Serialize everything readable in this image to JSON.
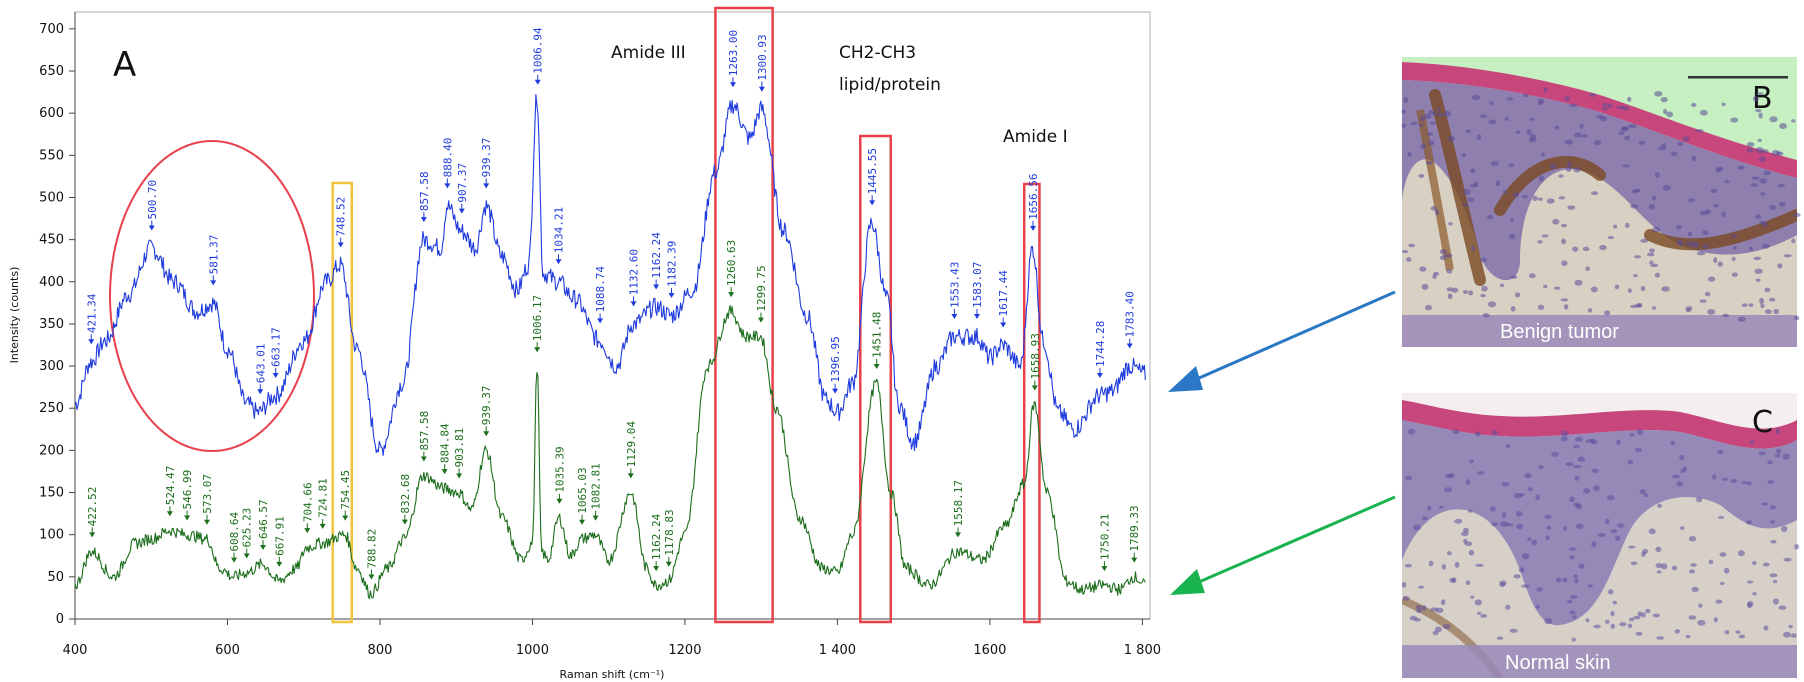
{
  "chart_data": {
    "type": "line",
    "panel_labels": [
      "A",
      "B",
      "C"
    ],
    "xlabel": "Raman shift (cm⁻¹)",
    "ylabel": "Intensity (counts)",
    "xlim": [
      400,
      1810
    ],
    "ylim": [
      0,
      720
    ],
    "xticks": [
      400,
      600,
      800,
      1000,
      1200,
      1400,
      1600,
      1800
    ],
    "xtick_labels": [
      "400",
      "600",
      "800",
      "1000",
      "1200",
      "1 400",
      "1600",
      "1 800"
    ],
    "yticks": [
      0,
      50,
      100,
      150,
      200,
      250,
      300,
      350,
      400,
      450,
      500,
      550,
      600,
      650,
      700
    ],
    "colors": {
      "benign": "#1f3bdd",
      "normal": "#1c6e1c",
      "box_red": "#e8414a",
      "box_yellow": "#f2c33d",
      "circle": "#e8414a",
      "arrow_blue": "#2a78c5",
      "arrow_green": "#19b34f"
    },
    "series": [
      {
        "key": "benign",
        "anchors": [
          [
            400,
            255
          ],
          [
            421,
            305
          ],
          [
            440,
            330
          ],
          [
            470,
            385
          ],
          [
            500,
            440
          ],
          [
            530,
            400
          ],
          [
            560,
            365
          ],
          [
            581,
            375
          ],
          [
            600,
            320
          ],
          [
            625,
            255
          ],
          [
            640,
            245
          ],
          [
            663,
            265
          ],
          [
            700,
            330
          ],
          [
            730,
            400
          ],
          [
            748,
            420
          ],
          [
            770,
            320
          ],
          [
            800,
            200
          ],
          [
            830,
            280
          ],
          [
            857,
            450
          ],
          [
            880,
            440
          ],
          [
            888,
            490
          ],
          [
            907,
            460
          ],
          [
            925,
            440
          ],
          [
            939,
            490
          ],
          [
            960,
            430
          ],
          [
            980,
            390
          ],
          [
            995,
            420
          ],
          [
            1006,
            620
          ],
          [
            1014,
            410
          ],
          [
            1034,
            400
          ],
          [
            1055,
            380
          ],
          [
            1088,
            330
          ],
          [
            1110,
            300
          ],
          [
            1132,
            350
          ],
          [
            1162,
            370
          ],
          [
            1182,
            360
          ],
          [
            1210,
            390
          ],
          [
            1240,
            530
          ],
          [
            1263,
            610
          ],
          [
            1285,
            570
          ],
          [
            1300,
            605
          ],
          [
            1330,
            460
          ],
          [
            1360,
            360
          ],
          [
            1385,
            260
          ],
          [
            1400,
            245
          ],
          [
            1420,
            280
          ],
          [
            1445,
            470
          ],
          [
            1465,
            380
          ],
          [
            1480,
            255
          ],
          [
            1500,
            210
          ],
          [
            1530,
            300
          ],
          [
            1553,
            335
          ],
          [
            1583,
            335
          ],
          [
            1600,
            310
          ],
          [
            1617,
            325
          ],
          [
            1640,
            300
          ],
          [
            1656,
            440
          ],
          [
            1670,
            330
          ],
          [
            1690,
            245
          ],
          [
            1710,
            225
          ],
          [
            1744,
            265
          ],
          [
            1760,
            270
          ],
          [
            1783,
            300
          ],
          [
            1805,
            290
          ]
        ],
        "peaks": [
          "421.34",
          "500.70",
          "581.37",
          "643.01",
          "663.17",
          "748.52",
          "857.58",
          "888.40",
          "907.37",
          "939.37",
          "1006.94",
          "1034.21",
          "1088.74",
          "1132.60",
          "1162.24",
          "1182.39",
          "1263.00",
          "1300.93",
          "1396.95",
          "1445.55",
          "1553.43",
          "1583.07",
          "1617.44",
          "1656.56",
          "1744.28",
          "1783.40"
        ]
      },
      {
        "key": "normal",
        "anchors": [
          [
            400,
            40
          ],
          [
            422,
            80
          ],
          [
            450,
            50
          ],
          [
            480,
            90
          ],
          [
            500,
            95
          ],
          [
            524,
            105
          ],
          [
            546,
            100
          ],
          [
            573,
            95
          ],
          [
            590,
            60
          ],
          [
            608,
            50
          ],
          [
            625,
            55
          ],
          [
            646,
            65
          ],
          [
            667,
            45
          ],
          [
            690,
            60
          ],
          [
            704,
            85
          ],
          [
            724,
            90
          ],
          [
            754,
            100
          ],
          [
            770,
            60
          ],
          [
            788,
            30
          ],
          [
            810,
            60
          ],
          [
            832,
            95
          ],
          [
            857,
            170
          ],
          [
            884,
            155
          ],
          [
            903,
            150
          ],
          [
            920,
            130
          ],
          [
            939,
            200
          ],
          [
            960,
            120
          ],
          [
            985,
            70
          ],
          [
            1000,
            90
          ],
          [
            1006,
            300
          ],
          [
            1012,
            80
          ],
          [
            1020,
            70
          ],
          [
            1035,
            120
          ],
          [
            1050,
            75
          ],
          [
            1065,
            95
          ],
          [
            1082,
            100
          ],
          [
            1100,
            70
          ],
          [
            1129,
            150
          ],
          [
            1150,
            60
          ],
          [
            1162,
            40
          ],
          [
            1178,
            45
          ],
          [
            1200,
            100
          ],
          [
            1230,
            300
          ],
          [
            1260,
            365
          ],
          [
            1280,
            335
          ],
          [
            1299,
            335
          ],
          [
            1320,
            250
          ],
          [
            1350,
            120
          ],
          [
            1380,
            60
          ],
          [
            1400,
            55
          ],
          [
            1420,
            100
          ],
          [
            1451,
            280
          ],
          [
            1470,
            150
          ],
          [
            1490,
            60
          ],
          [
            1520,
            40
          ],
          [
            1558,
            80
          ],
          [
            1590,
            70
          ],
          [
            1620,
            110
          ],
          [
            1645,
            160
          ],
          [
            1658,
            255
          ],
          [
            1675,
            150
          ],
          [
            1700,
            45
          ],
          [
            1720,
            35
          ],
          [
            1750,
            40
          ],
          [
            1770,
            35
          ],
          [
            1789,
            50
          ],
          [
            1805,
            40
          ]
        ],
        "peaks": [
          "422.52",
          "524.47",
          "546.99",
          "573.07",
          "608.64",
          "625.23",
          "646.57",
          "667.91",
          "704.66",
          "724.81",
          "754.45",
          "788.82",
          "832.68",
          "857.58",
          "884.84",
          "903.81",
          "939.37",
          "1006.17",
          "1035.39",
          "1065.03",
          "1082.81",
          "1129.04",
          "1162.24",
          "1178.83",
          "1260.63",
          "1299.75",
          "1451.48",
          "1558.17",
          "1658.93",
          "1750.21",
          "1789.33"
        ]
      }
    ],
    "region_labels": {
      "amide3": "Amide III",
      "ch2ch3_line1": "CH2-CH3",
      "ch2ch3_line2": "lipid/protein",
      "amide1": "Amide I"
    },
    "highlight_regions": [
      {
        "color": "red",
        "xrange": [
          1240,
          1315
        ]
      },
      {
        "color": "red",
        "xrange": [
          1430,
          1470
        ]
      },
      {
        "color": "red",
        "xrange": [
          1645,
          1665
        ]
      },
      {
        "color": "yellow",
        "xrange": [
          738,
          763
        ]
      }
    ],
    "tissue_panels": {
      "benign": {
        "label": "Benign tumor"
      },
      "normal": {
        "label": "Normal skin"
      }
    }
  }
}
